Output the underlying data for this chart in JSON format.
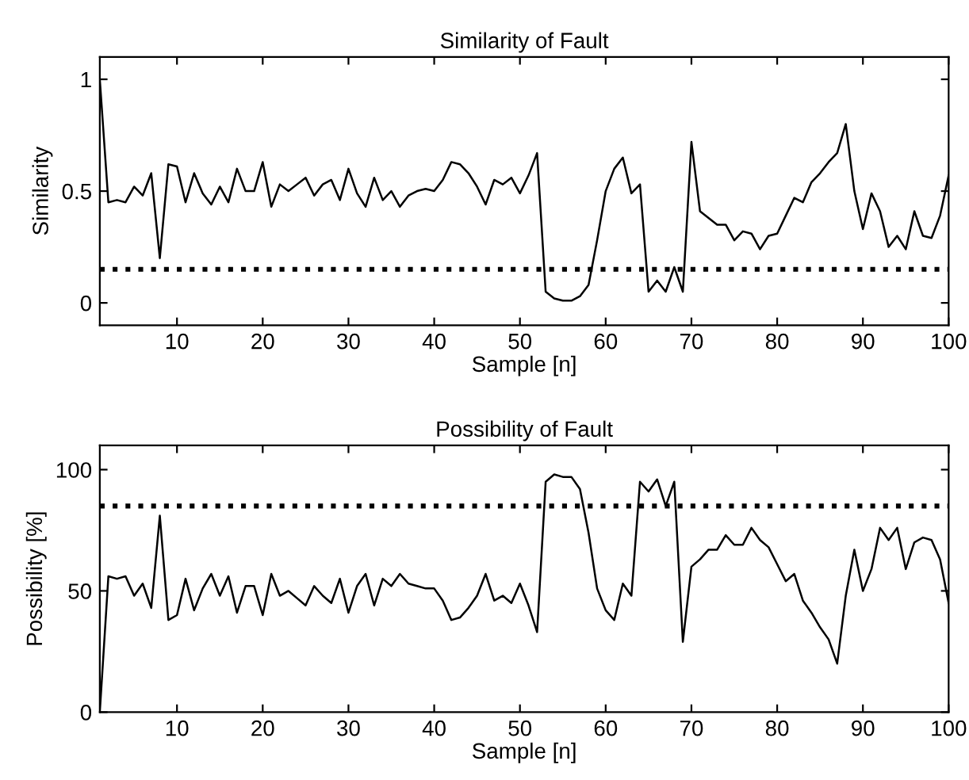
{
  "chart_data": [
    {
      "type": "line",
      "title": "Similarity of Fault",
      "xlabel": "Sample [n]",
      "ylabel": "Similarity",
      "xlim": [
        1,
        100
      ],
      "xticks": [
        10,
        20,
        30,
        40,
        50,
        60,
        70,
        80,
        90,
        100
      ],
      "ylim": [
        -0.1,
        1.1
      ],
      "yticks": [
        0,
        0.5,
        1
      ],
      "grid": false,
      "legend": false,
      "x": [
        1,
        2,
        3,
        4,
        5,
        6,
        7,
        8,
        9,
        10,
        11,
        12,
        13,
        14,
        15,
        16,
        17,
        18,
        19,
        20,
        21,
        22,
        23,
        24,
        25,
        26,
        27,
        28,
        29,
        30,
        31,
        32,
        33,
        34,
        35,
        36,
        37,
        38,
        39,
        40,
        41,
        42,
        43,
        44,
        45,
        46,
        47,
        48,
        49,
        50,
        51,
        52,
        53,
        54,
        55,
        56,
        57,
        58,
        59,
        60,
        61,
        62,
        63,
        64,
        65,
        66,
        67,
        68,
        69,
        70,
        71,
        72,
        73,
        74,
        75,
        76,
        77,
        78,
        79,
        80,
        81,
        82,
        83,
        84,
        85,
        86,
        87,
        88,
        89,
        90,
        91,
        92,
        93,
        94,
        95,
        96,
        97,
        98,
        99,
        100
      ],
      "series": [
        {
          "color": "#000000",
          "values": [
            1.0,
            0.45,
            0.46,
            0.45,
            0.52,
            0.48,
            0.58,
            0.2,
            0.62,
            0.61,
            0.45,
            0.58,
            0.49,
            0.44,
            0.52,
            0.45,
            0.6,
            0.5,
            0.5,
            0.63,
            0.43,
            0.53,
            0.5,
            0.53,
            0.56,
            0.48,
            0.53,
            0.55,
            0.46,
            0.6,
            0.49,
            0.43,
            0.56,
            0.46,
            0.5,
            0.43,
            0.48,
            0.5,
            0.51,
            0.5,
            0.55,
            0.63,
            0.62,
            0.58,
            0.52,
            0.44,
            0.55,
            0.53,
            0.56,
            0.49,
            0.57,
            0.67,
            0.05,
            0.02,
            0.01,
            0.01,
            0.03,
            0.08,
            0.28,
            0.5,
            0.6,
            0.65,
            0.49,
            0.53,
            0.05,
            0.1,
            0.05,
            0.16,
            0.05,
            0.72,
            0.41,
            0.38,
            0.35,
            0.35,
            0.28,
            0.32,
            0.31,
            0.24,
            0.3,
            0.31,
            0.39,
            0.47,
            0.45,
            0.54,
            0.58,
            0.63,
            0.67,
            0.8,
            0.5,
            0.33,
            0.49,
            0.41,
            0.25,
            0.3,
            0.24,
            0.41,
            0.3,
            0.29,
            0.39,
            0.57
          ]
        }
      ],
      "ref_lines": [
        {
          "axis": "y",
          "value": 0.15,
          "color": "#000000",
          "line_style": "dotted"
        }
      ]
    },
    {
      "type": "line",
      "title": "Possibility of Fault",
      "xlabel": "Sample [n]",
      "ylabel": "Possibility [%]",
      "xlim": [
        1,
        100
      ],
      "xticks": [
        10,
        20,
        30,
        40,
        50,
        60,
        70,
        80,
        90,
        100
      ],
      "ylim": [
        0,
        110
      ],
      "yticks": [
        0,
        50,
        100
      ],
      "grid": false,
      "legend": false,
      "x": [
        1,
        2,
        3,
        4,
        5,
        6,
        7,
        8,
        9,
        10,
        11,
        12,
        13,
        14,
        15,
        16,
        17,
        18,
        19,
        20,
        21,
        22,
        23,
        24,
        25,
        26,
        27,
        28,
        29,
        30,
        31,
        32,
        33,
        34,
        35,
        36,
        37,
        38,
        39,
        40,
        41,
        42,
        43,
        44,
        45,
        46,
        47,
        48,
        49,
        50,
        51,
        52,
        53,
        54,
        55,
        56,
        57,
        58,
        59,
        60,
        61,
        62,
        63,
        64,
        65,
        66,
        67,
        68,
        69,
        70,
        71,
        72,
        73,
        74,
        75,
        76,
        77,
        78,
        79,
        80,
        81,
        82,
        83,
        84,
        85,
        86,
        87,
        88,
        89,
        90,
        91,
        92,
        93,
        94,
        95,
        96,
        97,
        98,
        99,
        100
      ],
      "series": [
        {
          "color": "#000000",
          "values": [
            0,
            56,
            55,
            56,
            48,
            53,
            43,
            81,
            38,
            40,
            55,
            42,
            51,
            57,
            48,
            56,
            41,
            52,
            52,
            40,
            57,
            48,
            50,
            47,
            44,
            52,
            48,
            45,
            55,
            41,
            52,
            57,
            44,
            55,
            52,
            57,
            53,
            52,
            51,
            51,
            46,
            38,
            39,
            43,
            48,
            57,
            46,
            48,
            45,
            53,
            44,
            33,
            95,
            98,
            97,
            97,
            92,
            74,
            51,
            42,
            38,
            53,
            48,
            95,
            91,
            96,
            85,
            95,
            29,
            60,
            63,
            67,
            67,
            73,
            69,
            69,
            76,
            71,
            68,
            61,
            54,
            57,
            46,
            41,
            35,
            30,
            20,
            48,
            67,
            50,
            59,
            76,
            71,
            76,
            59,
            70,
            72,
            71,
            63,
            45
          ]
        }
      ],
      "ref_lines": [
        {
          "axis": "y",
          "value": 85,
          "color": "#000000",
          "line_style": "dotted"
        }
      ]
    }
  ]
}
